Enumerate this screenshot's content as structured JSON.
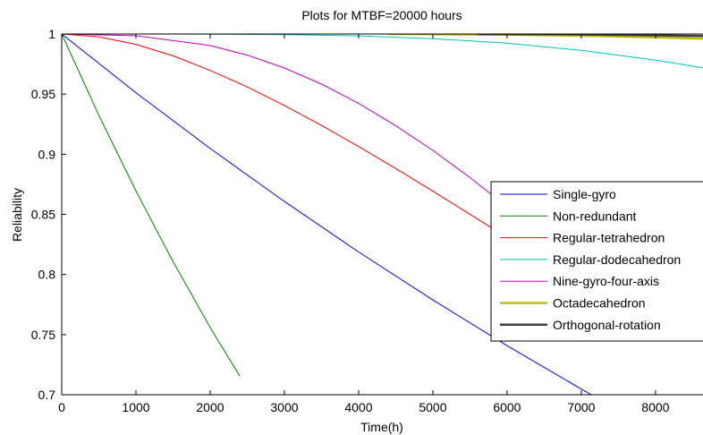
{
  "chart_data": {
    "type": "line",
    "title": "Plots for MTBF=20000 hours",
    "xlabel": "Time(h)",
    "ylabel": "Reliability",
    "xlim": [
      0,
      8640
    ],
    "ylim": [
      0.7,
      1.0
    ],
    "xticks": [
      0,
      1000,
      2000,
      3000,
      4000,
      5000,
      6000,
      7000,
      8000
    ],
    "xtick_labels": [
      "0",
      "1000",
      "2000",
      "3000",
      "4000",
      "5000",
      "6000",
      "7000",
      "8000"
    ],
    "yticks": [
      0.7,
      0.75,
      0.8,
      0.85,
      0.9,
      0.95,
      1.0
    ],
    "ytick_labels": [
      "0.7",
      "0.75",
      "0.8",
      "0.85",
      "0.9",
      "0.95",
      "1"
    ],
    "grid": false,
    "legend_position": "right",
    "series": [
      {
        "name": "Single-gyro",
        "color": "#0000ff",
        "width": 1,
        "x": [
          0,
          1000,
          2000,
          3000,
          4000,
          5000,
          6000,
          7000,
          7200
        ],
        "y": [
          1.0,
          0.9512,
          0.9048,
          0.8607,
          0.8187,
          0.7788,
          0.7408,
          0.7047,
          0.6977
        ]
      },
      {
        "name": "Non-redundant",
        "color": "#008000",
        "width": 1,
        "x": [
          0,
          500,
          1000,
          1500,
          2000,
          2400
        ],
        "y": [
          1.0,
          0.9324,
          0.8694,
          0.8106,
          0.7558,
          0.7153
        ]
      },
      {
        "name": "Regular-tetrahedron",
        "color": "#ff0000",
        "width": 1,
        "x": [
          0,
          500,
          1000,
          1500,
          2000,
          2500,
          3000,
          3500,
          4000,
          4500,
          5000,
          5500,
          6000,
          6400
        ],
        "y": [
          1.0,
          0.9977,
          0.9914,
          0.9818,
          0.9697,
          0.9559,
          0.9405,
          0.9239,
          0.9064,
          0.8881,
          0.8693,
          0.8501,
          0.8307,
          0.8151
        ]
      },
      {
        "name": "Regular-dodecahedron",
        "color": "#00c0c0",
        "width": 1,
        "x": [
          0,
          1000,
          2000,
          3000,
          4000,
          5000,
          6000,
          7000,
          8000,
          8640
        ],
        "y": [
          1.0,
          1.0,
          0.9999,
          0.9995,
          0.9984,
          0.9961,
          0.9923,
          0.9864,
          0.9783,
          0.9719
        ]
      },
      {
        "name": "Nine-gyro-four-axis",
        "color": "#c000c0",
        "width": 1,
        "x": [
          0,
          1000,
          2000,
          2500,
          3000,
          3500,
          4000,
          4500,
          5000,
          5500,
          6000,
          6500,
          7000,
          7100
        ],
        "y": [
          1.0,
          0.9986,
          0.9904,
          0.9824,
          0.9717,
          0.9583,
          0.9423,
          0.9238,
          0.9032,
          0.8806,
          0.8563,
          0.8306,
          0.8038,
          0.7983
        ]
      },
      {
        "name": "Octadecahedron",
        "color": "#c0c000",
        "width": 2.5,
        "x": [
          4400,
          5000,
          6000,
          7000,
          8000,
          8640
        ],
        "y": [
          1.0,
          0.9998,
          0.9994,
          0.9986,
          0.9972,
          0.9961
        ]
      },
      {
        "name": "Orthogonal-rotation",
        "color": "#404040",
        "width": 2.5,
        "x": [
          5600,
          6000,
          7000,
          8000,
          8640
        ],
        "y": [
          1.0,
          0.9999,
          0.9996,
          0.9989,
          0.9983
        ]
      }
    ]
  }
}
